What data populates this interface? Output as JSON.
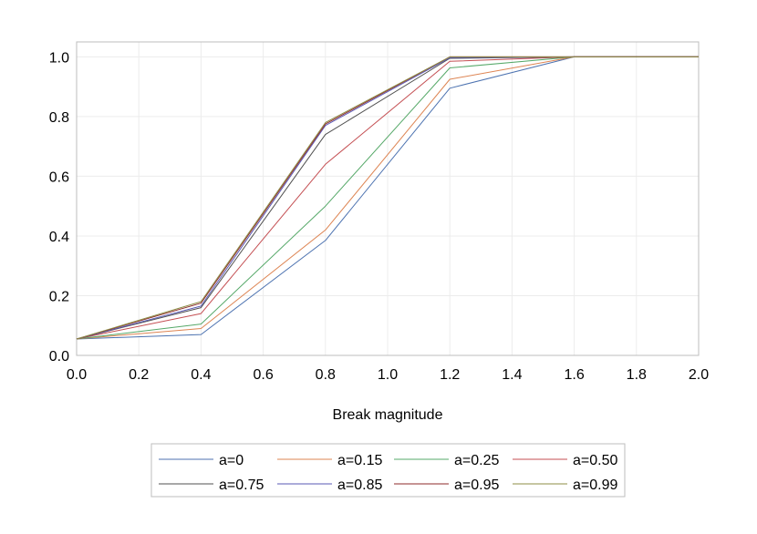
{
  "chart_data": {
    "type": "line",
    "title": "",
    "xlabel": "Break magnitude",
    "ylabel": "",
    "xlim": [
      0,
      2.0
    ],
    "ylim": [
      0,
      1.05
    ],
    "xticks": [
      "0.0",
      "0.2",
      "0.4",
      "0.6",
      "0.8",
      "1.0",
      "1.2",
      "1.4",
      "1.6",
      "1.8",
      "2.0"
    ],
    "yticks": [
      "0.0",
      "0.2",
      "0.4",
      "0.6",
      "0.8",
      "1.0"
    ],
    "grid": true,
    "legend_position": "bottom",
    "x": [
      0.0,
      0.4,
      0.8,
      1.2,
      1.6,
      2.0
    ],
    "series": [
      {
        "name": "a=0",
        "color": "#4c72b0",
        "values": [
          0.055,
          0.07,
          0.385,
          0.895,
          1.0,
          1.0
        ]
      },
      {
        "name": "a=0.15",
        "color": "#dd8452",
        "values": [
          0.055,
          0.09,
          0.42,
          0.925,
          1.0,
          1.0
        ]
      },
      {
        "name": "a=0.25",
        "color": "#55a868",
        "values": [
          0.055,
          0.105,
          0.5,
          0.963,
          1.0,
          1.0
        ]
      },
      {
        "name": "a=0.50",
        "color": "#c44e52",
        "values": [
          0.055,
          0.14,
          0.64,
          0.985,
          1.0,
          1.0
        ]
      },
      {
        "name": "a=0.75",
        "color": "#505050",
        "values": [
          0.055,
          0.16,
          0.74,
          0.995,
          1.0,
          1.0
        ]
      },
      {
        "name": "a=0.85",
        "color": "#5a5ab4",
        "values": [
          0.055,
          0.165,
          0.77,
          0.997,
          1.0,
          1.0
        ]
      },
      {
        "name": "a=0.95",
        "color": "#8c2a2a",
        "values": [
          0.055,
          0.175,
          0.775,
          1.0,
          1.0,
          1.0
        ]
      },
      {
        "name": "a=0.99",
        "color": "#8c8c46",
        "values": [
          0.055,
          0.18,
          0.78,
          1.0,
          1.0,
          1.0
        ]
      }
    ]
  }
}
